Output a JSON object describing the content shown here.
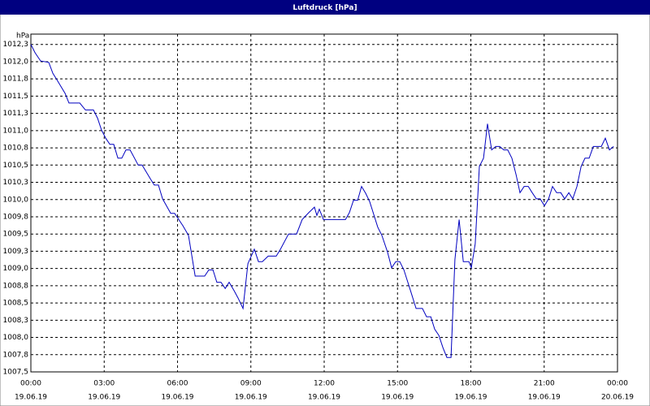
{
  "chart_data": {
    "type": "line",
    "title": "Luftdruck [hPa]",
    "y_label": "hPa",
    "color": "#0000c0",
    "grid": true,
    "x": [
      0,
      0.17,
      0.4,
      0.73,
      0.9,
      1.06,
      1.4,
      1.56,
      2.0,
      2.23,
      2.56,
      2.73,
      2.89,
      3.06,
      3.23,
      3.39,
      3.56,
      3.72,
      3.89,
      4.06,
      4.39,
      4.55,
      4.89,
      5.05,
      5.22,
      5.39,
      5.72,
      5.88,
      6.22,
      6.45,
      6.72,
      7.11,
      7.28,
      7.45,
      7.61,
      7.78,
      7.95,
      8.11,
      8.31,
      8.48,
      8.68,
      8.88,
      9.14,
      9.31,
      9.47,
      9.71,
      10.04,
      10.21,
      10.54,
      10.87,
      11.1,
      11.37,
      11.6,
      11.7,
      11.8,
      11.97,
      12.87,
      13.03,
      13.2,
      13.37,
      13.53,
      13.7,
      13.86,
      14.19,
      14.36,
      14.59,
      14.76,
      14.93,
      15.09,
      15.26,
      15.53,
      15.76,
      16.02,
      16.19,
      16.36,
      16.52,
      16.69,
      16.86,
      17.02,
      17.19,
      17.35,
      17.52,
      17.69,
      17.92,
      18.02,
      18.18,
      18.35,
      18.52,
      18.68,
      18.85,
      19.02,
      19.18,
      19.35,
      19.51,
      19.68,
      19.85,
      20.01,
      20.18,
      20.35,
      20.51,
      20.68,
      20.84,
      21.01,
      21.18,
      21.34,
      21.51,
      21.68,
      21.84,
      22.01,
      22.17,
      22.34,
      22.51,
      22.67,
      22.84,
      23.01,
      23.17,
      23.34,
      23.5,
      23.67,
      23.84
    ],
    "values": [
      1012.25,
      1012.13,
      1012.01,
      1011.99,
      1011.83,
      1011.74,
      1011.54,
      1011.4,
      1011.4,
      1011.3,
      1011.3,
      1011.18,
      1011.01,
      1010.89,
      1010.8,
      1010.8,
      1010.6,
      1010.6,
      1010.72,
      1010.72,
      1010.5,
      1010.5,
      1010.3,
      1010.21,
      1010.21,
      1010.01,
      1009.8,
      1009.8,
      1009.62,
      1009.48,
      1008.89,
      1008.89,
      1008.98,
      1008.98,
      1008.8,
      1008.8,
      1008.71,
      1008.8,
      1008.68,
      1008.57,
      1008.42,
      1009.07,
      1009.28,
      1009.1,
      1009.1,
      1009.18,
      1009.18,
      1009.28,
      1009.5,
      1009.5,
      1009.71,
      1009.81,
      1009.89,
      1009.77,
      1009.86,
      1009.71,
      1009.71,
      1009.81,
      1009.99,
      1009.99,
      1010.19,
      1010.09,
      1009.97,
      1009.6,
      1009.48,
      1009.24,
      1009.01,
      1009.1,
      1009.1,
      1008.98,
      1008.68,
      1008.42,
      1008.42,
      1008.3,
      1008.3,
      1008.12,
      1008.03,
      1007.85,
      1007.71,
      1007.71,
      1009.13,
      1009.71,
      1009.1,
      1009.1,
      1009.01,
      1009.36,
      1010.48,
      1010.6,
      1011.1,
      1010.72,
      1010.77,
      1010.77,
      1010.72,
      1010.72,
      1010.6,
      1010.36,
      1010.1,
      1010.19,
      1010.19,
      1010.1,
      1010.01,
      1010.01,
      1009.91,
      1010.01,
      1010.19,
      1010.1,
      1010.1,
      1010.01,
      1010.1,
      1010.01,
      1010.19,
      1010.48,
      1010.6,
      1010.6,
      1010.77,
      1010.77,
      1010.77,
      1010.89,
      1010.72,
      1010.77
    ],
    "xlim": [
      0,
      24
    ],
    "ylim": [
      1007.5,
      1012.4
    ],
    "xticks": [
      {
        "value": 0,
        "label": "00:00"
      },
      {
        "value": 3,
        "label": "03:00"
      },
      {
        "value": 6,
        "label": "06:00"
      },
      {
        "value": 9,
        "label": "09:00"
      },
      {
        "value": 12,
        "label": "12:00"
      },
      {
        "value": 15,
        "label": "15:00"
      },
      {
        "value": 18,
        "label": "18:00"
      },
      {
        "value": 21,
        "label": "21:00"
      },
      {
        "value": 24,
        "label": "00:00"
      }
    ],
    "xtick_dates": [
      "19.06.19",
      "19.06.19",
      "19.06.19",
      "19.06.19",
      "19.06.19",
      "19.06.19",
      "19.06.19",
      "19.06.19",
      "20.06.19"
    ],
    "yticks": [
      {
        "value": 1007.5,
        "label": "1007,5"
      },
      {
        "value": 1007.75,
        "label": "1007,8"
      },
      {
        "value": 1008.0,
        "label": "1008,0"
      },
      {
        "value": 1008.25,
        "label": "1008,3"
      },
      {
        "value": 1008.5,
        "label": "1008,5"
      },
      {
        "value": 1008.75,
        "label": "1008,8"
      },
      {
        "value": 1009.0,
        "label": "1009,0"
      },
      {
        "value": 1009.25,
        "label": "1009,3"
      },
      {
        "value": 1009.5,
        "label": "1009,5"
      },
      {
        "value": 1009.75,
        "label": "1009,8"
      },
      {
        "value": 1010.0,
        "label": "1010,0"
      },
      {
        "value": 1010.25,
        "label": "1010,3"
      },
      {
        "value": 1010.5,
        "label": "1010,5"
      },
      {
        "value": 1010.75,
        "label": "1010,8"
      },
      {
        "value": 1011.0,
        "label": "1011,0"
      },
      {
        "value": 1011.25,
        "label": "1011,3"
      },
      {
        "value": 1011.5,
        "label": "1011,5"
      },
      {
        "value": 1011.75,
        "label": "1011,8"
      },
      {
        "value": 1012.0,
        "label": "1012,0"
      },
      {
        "value": 1012.25,
        "label": "1012,3"
      }
    ]
  }
}
